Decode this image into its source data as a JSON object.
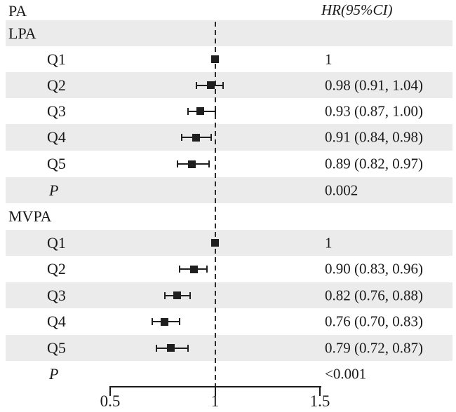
{
  "colors": {
    "stripe": "#ebebeb",
    "text": "#1a1a1a",
    "marker": "#1f1f1f",
    "background": "#ffffff"
  },
  "chart_data": {
    "type": "forest",
    "variant": "hazard-ratio-forest-plot",
    "column_headers": {
      "left": "PA",
      "right": "HR(95%CI)"
    },
    "x_axis": {
      "range": [
        0.5,
        1.5
      ],
      "ticks": [
        0.5,
        1,
        1.5
      ],
      "tick_labels": [
        "0.5",
        "1",
        "1.5"
      ],
      "reference_line": 1
    },
    "legend": null,
    "grid": false,
    "groups": [
      {
        "name": "LPA",
        "rows": [
          {
            "label": "Q1",
            "hr": 1,
            "ci_low": null,
            "ci_high": null,
            "hr_ci": "1"
          },
          {
            "label": "Q2",
            "hr": 0.98,
            "ci_low": 0.91,
            "ci_high": 1.04,
            "hr_ci": "0.98 (0.91, 1.04)"
          },
          {
            "label": "Q3",
            "hr": 0.93,
            "ci_low": 0.87,
            "ci_high": 1.0,
            "hr_ci": "0.93 (0.87, 1.00)"
          },
          {
            "label": "Q4",
            "hr": 0.91,
            "ci_low": 0.84,
            "ci_high": 0.98,
            "hr_ci": "0.91 (0.84, 0.98)"
          },
          {
            "label": "Q5",
            "hr": 0.89,
            "ci_low": 0.82,
            "ci_high": 0.97,
            "hr_ci": "0.89 (0.82, 0.97)"
          }
        ],
        "p_label": "P",
        "p_value": "0.002"
      },
      {
        "name": "MVPA",
        "rows": [
          {
            "label": "Q1",
            "hr": 1,
            "ci_low": null,
            "ci_high": null,
            "hr_ci": "1"
          },
          {
            "label": "Q2",
            "hr": 0.9,
            "ci_low": 0.83,
            "ci_high": 0.96,
            "hr_ci": "0.90 (0.83, 0.96)"
          },
          {
            "label": "Q3",
            "hr": 0.82,
            "ci_low": 0.76,
            "ci_high": 0.88,
            "hr_ci": "0.82 (0.76, 0.88)"
          },
          {
            "label": "Q4",
            "hr": 0.76,
            "ci_low": 0.7,
            "ci_high": 0.83,
            "hr_ci": "0.76 (0.70, 0.83)"
          },
          {
            "label": "Q5",
            "hr": 0.79,
            "ci_low": 0.72,
            "ci_high": 0.87,
            "hr_ci": "0.79 (0.72, 0.87)"
          }
        ],
        "p_label": "P",
        "p_value": "<0.001"
      }
    ]
  }
}
